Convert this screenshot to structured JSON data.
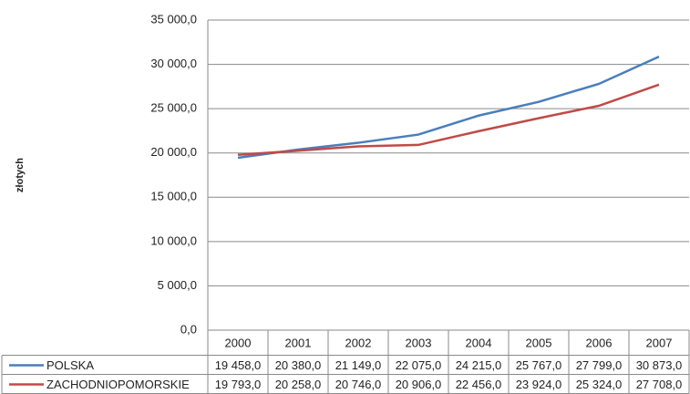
{
  "chart_data": {
    "type": "line",
    "y_label": "złotych",
    "categories": [
      "2000",
      "2001",
      "2002",
      "2003",
      "2004",
      "2005",
      "2006",
      "2007"
    ],
    "series": [
      {
        "name": "POLSKA",
        "color": "#4a7ebb",
        "values": [
          19458,
          20380,
          21149,
          22075,
          24215,
          25767,
          27799,
          30873
        ],
        "value_labels": [
          "19 458,0",
          "20 380,0",
          "21 149,0",
          "22 075,0",
          "24 215,0",
          "25 767,0",
          "27 799,0",
          "30 873,0"
        ]
      },
      {
        "name": "ZACHODNIOPOMORSKIE",
        "color": "#be4b48",
        "values": [
          19793,
          20258,
          20746,
          20906,
          22456,
          23924,
          25324,
          27708
        ],
        "value_labels": [
          "19 793,0",
          "20 258,0",
          "20 746,0",
          "20 906,0",
          "22 456,0",
          "23 924,0",
          "25 324,0",
          "27 708,0"
        ]
      }
    ],
    "ylim": [
      0,
      35000
    ],
    "yticks": [
      {
        "value": 0,
        "label": "0,0"
      },
      {
        "value": 5000,
        "label": "5 000,0"
      },
      {
        "value": 10000,
        "label": "10 000,0"
      },
      {
        "value": 15000,
        "label": "15 000,0"
      },
      {
        "value": 20000,
        "label": "20 000,0"
      },
      {
        "value": 25000,
        "label": "25 000,0"
      },
      {
        "value": 30000,
        "label": "30 000,0"
      },
      {
        "value": 35000,
        "label": "35 000,0"
      }
    ],
    "grid": true
  }
}
